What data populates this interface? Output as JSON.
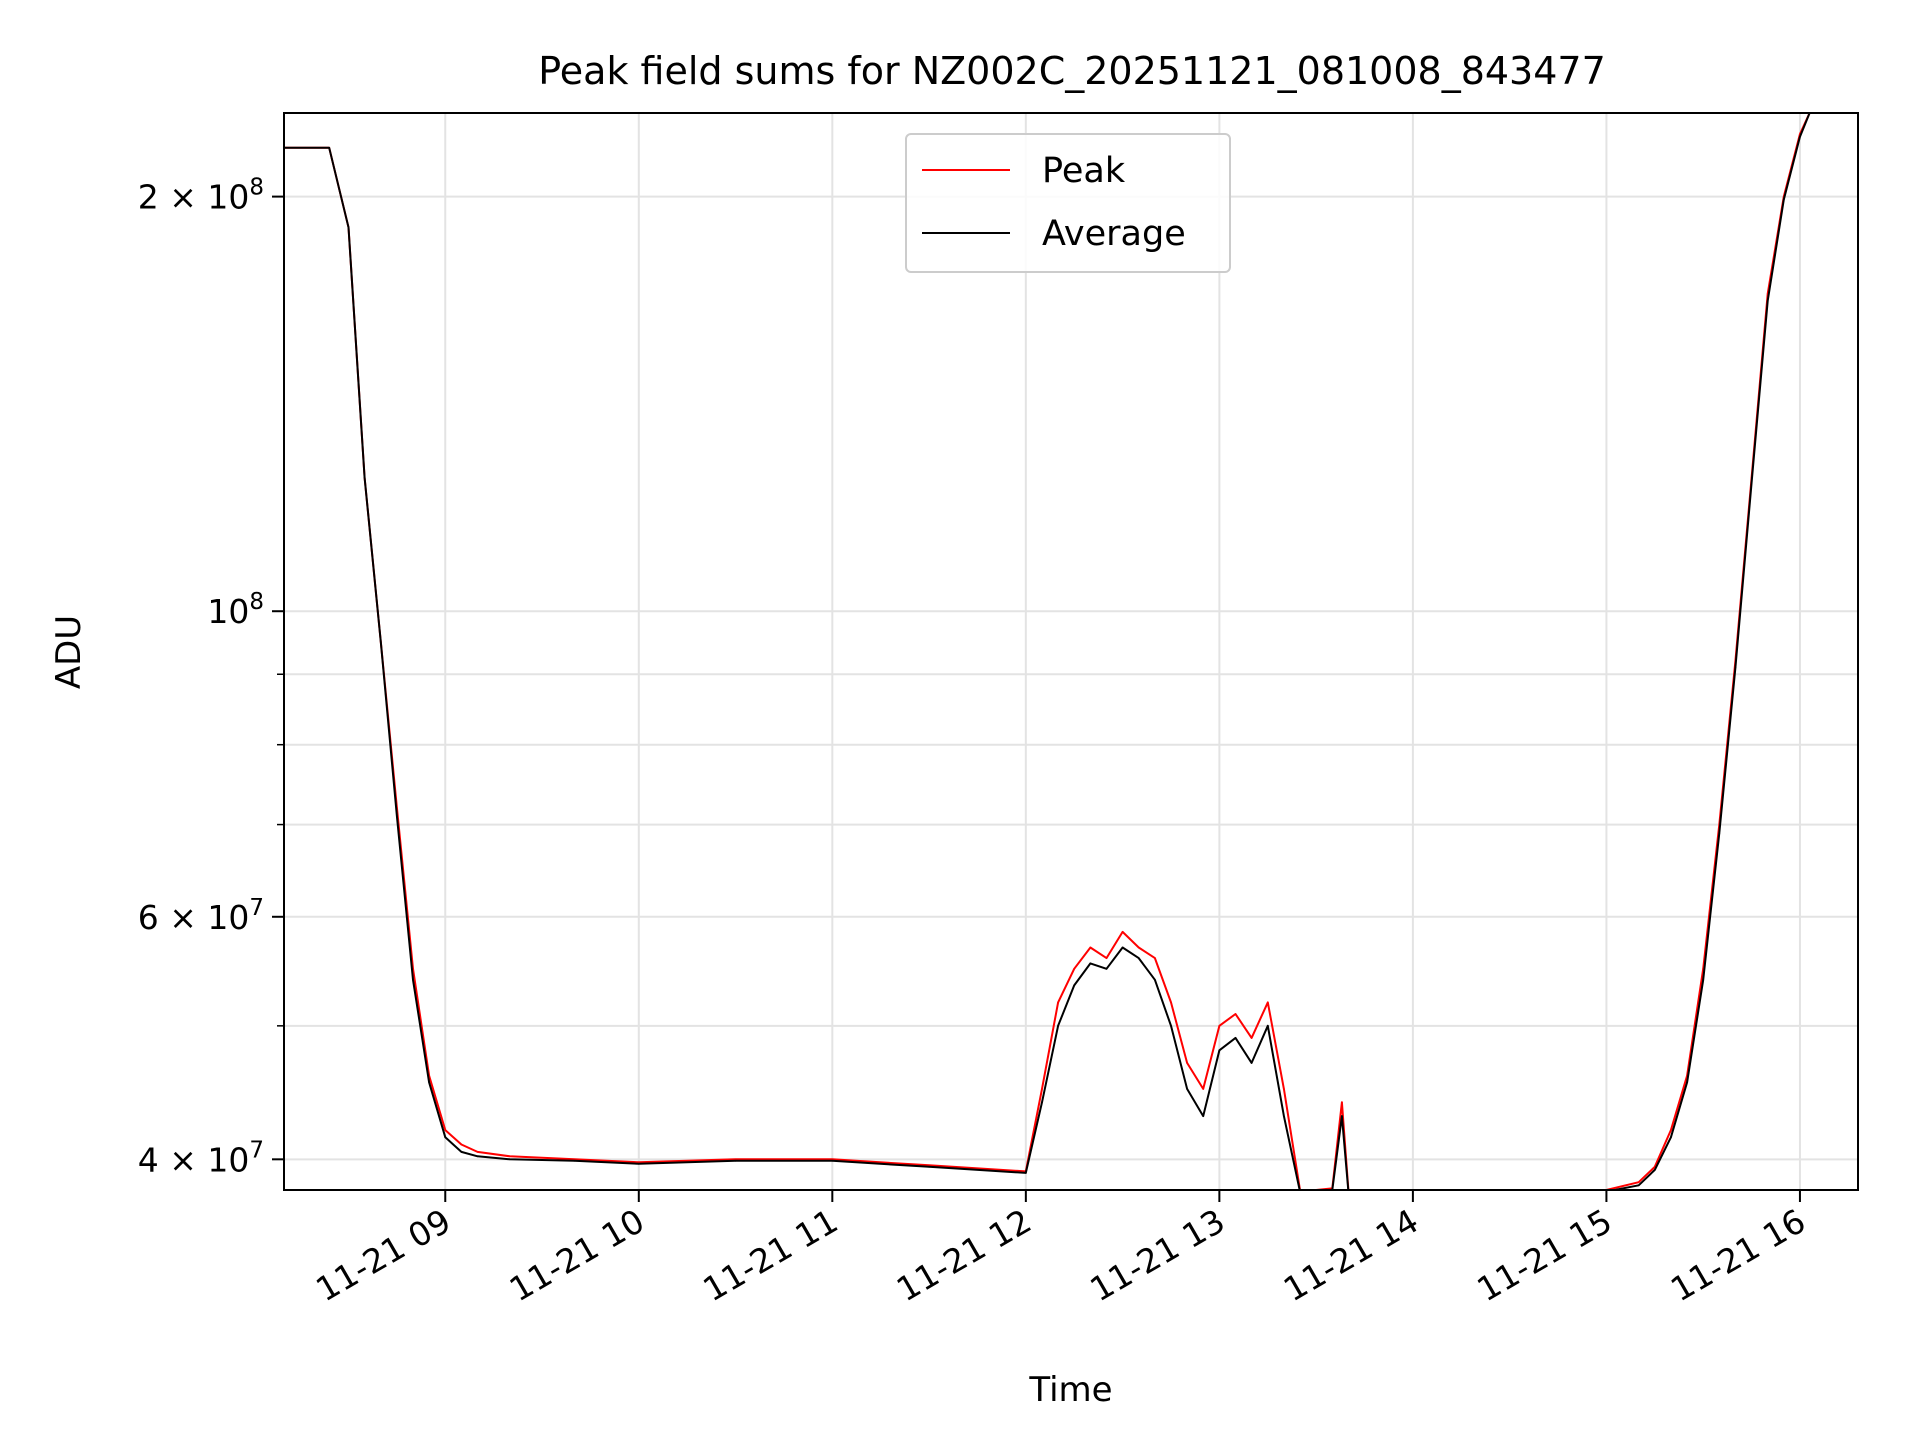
{
  "chart_data": {
    "type": "line",
    "title": "Peak field sums for NZ002C_20251121_081008_843477",
    "xlabel": "Time",
    "ylabel": "ADU",
    "y_scale": "log",
    "ylim": [
      38000000,
      230000000
    ],
    "xlim": [
      "2025-11-21 08:10",
      "2025-11-21 16:18"
    ],
    "grid": true,
    "legend_position": "top-center",
    "x_ticks": [
      {
        "t": "2025-11-21 09:00",
        "label": "11-21 09"
      },
      {
        "t": "2025-11-21 10:00",
        "label": "11-21 10"
      },
      {
        "t": "2025-11-21 11:00",
        "label": "11-21 11"
      },
      {
        "t": "2025-11-21 12:00",
        "label": "11-21 12"
      },
      {
        "t": "2025-11-21 13:00",
        "label": "11-21 13"
      },
      {
        "t": "2025-11-21 14:00",
        "label": "11-21 14"
      },
      {
        "t": "2025-11-21 15:00",
        "label": "11-21 15"
      },
      {
        "t": "2025-11-21 16:00",
        "label": "11-21 16"
      }
    ],
    "y_ticks": [
      {
        "value": 40000000,
        "base": "4",
        "exp": "7"
      },
      {
        "value": 60000000,
        "base": "6",
        "exp": "7"
      },
      {
        "value": 100000000,
        "base": "",
        "exp": "8"
      },
      {
        "value": 200000000,
        "base": "2",
        "exp": "8"
      }
    ],
    "y_minor_ticks": [
      50000000,
      70000000,
      80000000,
      90000000
    ],
    "x": [
      "2025-11-21 08:10",
      "2025-11-21 08:24",
      "2025-11-21 08:30",
      "2025-11-21 08:35",
      "2025-11-21 08:40",
      "2025-11-21 08:45",
      "2025-11-21 08:50",
      "2025-11-21 08:55",
      "2025-11-21 09:00",
      "2025-11-21 09:05",
      "2025-11-21 09:10",
      "2025-11-21 09:20",
      "2025-11-21 09:40",
      "2025-11-21 10:00",
      "2025-11-21 10:30",
      "2025-11-21 11:00",
      "2025-11-21 11:30",
      "2025-11-21 12:00",
      "2025-11-21 12:05",
      "2025-11-21 12:10",
      "2025-11-21 12:15",
      "2025-11-21 12:20",
      "2025-11-21 12:25",
      "2025-11-21 12:30",
      "2025-11-21 12:35",
      "2025-11-21 12:40",
      "2025-11-21 12:45",
      "2025-11-21 12:50",
      "2025-11-21 12:55",
      "2025-11-21 13:00",
      "2025-11-21 13:05",
      "2025-11-21 13:10",
      "2025-11-21 13:15",
      "2025-11-21 13:20",
      "2025-11-21 13:25",
      "2025-11-21 13:30",
      "2025-11-21 13:35",
      "2025-11-21 13:38",
      "2025-11-21 13:40",
      "2025-11-21 13:45",
      "2025-11-21 14:00",
      "2025-11-21 14:30",
      "2025-11-21 15:00",
      "2025-11-21 15:10",
      "2025-11-21 15:15",
      "2025-11-21 15:20",
      "2025-11-21 15:25",
      "2025-11-21 15:30",
      "2025-11-21 15:35",
      "2025-11-21 15:40",
      "2025-11-21 15:45",
      "2025-11-21 15:50",
      "2025-11-21 15:55",
      "2025-11-21 16:00",
      "2025-11-21 16:03"
    ],
    "series": [
      {
        "name": "Peak",
        "color": "#ff0000",
        "values": [
          217000000,
          217000000,
          190000000,
          125000000,
          95000000,
          72000000,
          55000000,
          46000000,
          42000000,
          41000000,
          40500000,
          40200000,
          40000000,
          39800000,
          40000000,
          40000000,
          39600000,
          39200000,
          45000000,
          52000000,
          55000000,
          57000000,
          56000000,
          58500000,
          57000000,
          56000000,
          52000000,
          47000000,
          45000000,
          50000000,
          51000000,
          49000000,
          52000000,
          45000000,
          38000000,
          38000000,
          38100000,
          44000000,
          38000000,
          38000000,
          38000000,
          37900000,
          38000000,
          38500000,
          39500000,
          42000000,
          46000000,
          55000000,
          70000000,
          92000000,
          125000000,
          170000000,
          200000000,
          222000000,
          230000000
        ]
      },
      {
        "name": "Average",
        "color": "#000000",
        "values": [
          217000000,
          217000000,
          190000000,
          125000000,
          95000000,
          71000000,
          54000000,
          45500000,
          41500000,
          40500000,
          40200000,
          40000000,
          39900000,
          39700000,
          39900000,
          39900000,
          39500000,
          39100000,
          44000000,
          50000000,
          53500000,
          55500000,
          55000000,
          57000000,
          56000000,
          54000000,
          50000000,
          45000000,
          43000000,
          48000000,
          49000000,
          47000000,
          50000000,
          43000000,
          37900000,
          37900000,
          38000000,
          43000000,
          37900000,
          37900000,
          37900000,
          37800000,
          37900000,
          38300000,
          39300000,
          41500000,
          45500000,
          54000000,
          69000000,
          91000000,
          124000000,
          168000000,
          199000000,
          221000000,
          230000000
        ]
      }
    ]
  }
}
